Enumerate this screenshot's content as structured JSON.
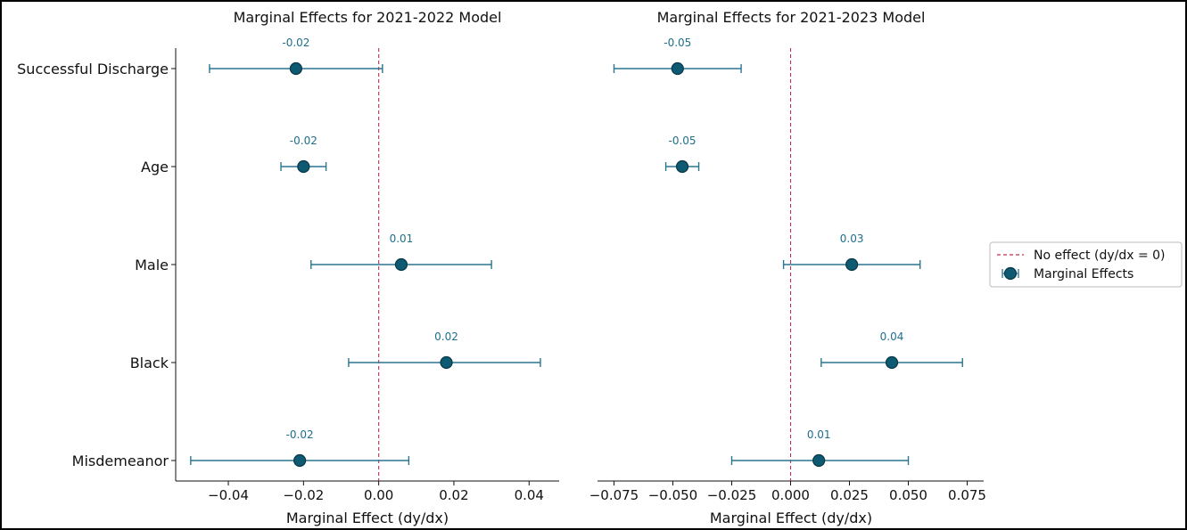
{
  "colors": {
    "point_fill": "#0f5a73",
    "point_edge": "#083747",
    "errorbar": "#2b7590",
    "zero_line": "#c0304e",
    "data_label": "#1f6f8b"
  },
  "legend": {
    "items": [
      {
        "label": "No effect (dy/dx = 0)",
        "kind": "dashed-line"
      },
      {
        "label": "Marginal Effects",
        "kind": "errorbar-point"
      }
    ],
    "placement": "right"
  },
  "chart_data": [
    {
      "type": "scatter",
      "subtype": "errorbar",
      "title": "Marginal Effects for 2021-2022 Model",
      "xlabel": "Marginal Effect (dy/dx)",
      "ylabel": "",
      "categories": [
        "Successful Discharge",
        "Age",
        "Male",
        "Black",
        "Misdemeanor"
      ],
      "show_category_labels": true,
      "values": [
        -0.022,
        -0.02,
        0.006,
        0.018,
        -0.021
      ],
      "ci_low": [
        -0.045,
        -0.026,
        -0.018,
        -0.008,
        -0.05
      ],
      "ci_high": [
        0.001,
        -0.014,
        0.03,
        0.043,
        0.008
      ],
      "data_labels": [
        "-0.02",
        "-0.02",
        "0.01",
        "0.02",
        "-0.02"
      ],
      "xlim": [
        -0.054,
        0.048
      ],
      "xticks": [
        -0.04,
        -0.02,
        0.0,
        0.02,
        0.04
      ],
      "xtick_labels": [
        "−0.04",
        "−0.02",
        "0.00",
        "0.02",
        "0.04"
      ],
      "reference_line": 0,
      "grid": false
    },
    {
      "type": "scatter",
      "subtype": "errorbar",
      "title": "Marginal Effects for 2021-2023 Model",
      "xlabel": "Marginal Effect (dy/dx)",
      "ylabel": "",
      "categories": [
        "Successful Discharge",
        "Age",
        "Male",
        "Black",
        "Misdemeanor"
      ],
      "show_category_labels": false,
      "values": [
        -0.048,
        -0.046,
        0.026,
        0.043,
        0.012
      ],
      "ci_low": [
        -0.075,
        -0.053,
        -0.003,
        0.013,
        -0.025
      ],
      "ci_high": [
        -0.021,
        -0.039,
        0.055,
        0.073,
        0.05
      ],
      "data_labels": [
        "-0.05",
        "-0.05",
        "0.03",
        "0.04",
        "0.01"
      ],
      "xlim": [
        -0.082,
        0.082
      ],
      "xticks": [
        -0.075,
        -0.05,
        -0.025,
        0.0,
        0.025,
        0.05,
        0.075
      ],
      "xtick_labels": [
        "−0.075",
        "−0.050",
        "−0.025",
        "0.000",
        "0.025",
        "0.050",
        "0.075"
      ],
      "reference_line": 0,
      "grid": false
    }
  ]
}
